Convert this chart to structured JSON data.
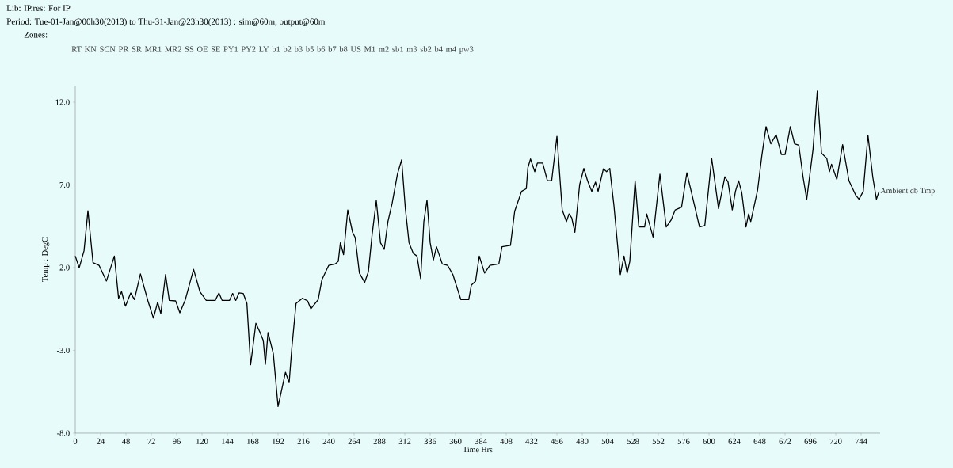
{
  "chart_data": {
    "type": "line",
    "title": "Lib: IP.res: For IP",
    "subtitle": "Period: Tue-01-Jan@00h30(2013) to Thu-31-Jan@23h30(2013) : sim@60m, output@60m",
    "xlabel": "Time Hrs",
    "ylabel": "Temp : DegC",
    "annotations": [
      "Zones:",
      "RT",
      "KN",
      "SCN",
      "PR",
      "SR",
      "MR1",
      "MR2",
      "SS",
      "OE",
      "SE",
      "PY1",
      "PY2",
      "LY",
      "b1",
      "b2",
      "b3",
      "b5",
      "b6",
      "b7",
      "b8",
      "US",
      "M1",
      "m2",
      "sb1",
      "m3",
      "sb2",
      "b4",
      "m4",
      "pw3"
    ],
    "xlim": [
      0,
      762
    ],
    "ylim": [
      -8,
      13
    ],
    "xticks": [
      0,
      24,
      48,
      72,
      96,
      120,
      144,
      168,
      192,
      216,
      240,
      264,
      288,
      312,
      336,
      360,
      384,
      408,
      432,
      456,
      480,
      504,
      528,
      552,
      576,
      600,
      624,
      648,
      672,
      696,
      720,
      744
    ],
    "yticks": [
      {
        "value": -8,
        "label": "-8.0"
      },
      {
        "value": -3,
        "label": "-3.0"
      },
      {
        "value": 2,
        "label": "2.0"
      },
      {
        "value": 7,
        "label": "7.0"
      },
      {
        "value": 12,
        "label": "12.0"
      }
    ],
    "grid": false,
    "legend": false,
    "series": [
      {
        "name": "Ambient db Tmp",
        "color": "#000000",
        "x": [
          0,
          3.75,
          8.3,
          12,
          16.8,
          22.5,
          29.5,
          37,
          41,
          43.8,
          47.5,
          52.5,
          56,
          61.7,
          68.8,
          74,
          78,
          81,
          85.5,
          89,
          95,
          99,
          104,
          112,
          118,
          124,
          132.5,
          136,
          139,
          146,
          149,
          152,
          155,
          159,
          162.5,
          166,
          168,
          171,
          175,
          178,
          180,
          182.5,
          187.5,
          192,
          199,
          202.5,
          205,
          209,
          215,
          220,
          223,
          230,
          233.5,
          240,
          246,
          249,
          251,
          254,
          258,
          262.5,
          265,
          269,
          274,
          277.5,
          281,
          285,
          289,
          292.5,
          296,
          300,
          305,
          309,
          312.5,
          316,
          320,
          323.5,
          327,
          330,
          333,
          336,
          339,
          342,
          347.5,
          352.5,
          357.5,
          365,
          372.5,
          375,
          379,
          382.5,
          387.5,
          392.5,
          401,
          404,
          412,
          416,
          422.5,
          427,
          428.5,
          431,
          435,
          437.5,
          442.5,
          447,
          451,
          456,
          461,
          465,
          467.5,
          470,
          473,
          477.5,
          481.5,
          485,
          489,
          492.5,
          495,
          500,
          503,
          506,
          510,
          516,
          519.5,
          522.5,
          525,
          530,
          533.5,
          539,
          541,
          547,
          553.5,
          559.5,
          564,
          568,
          574,
          579,
          584,
          591,
          596,
          602.5,
          609,
          615,
          618,
          622,
          625,
          628,
          631,
          635,
          637.5,
          639.5,
          646,
          650,
          654,
          658.5,
          663.5,
          668.5,
          672,
          677,
          681,
          685,
          689,
          692.5,
          698.5,
          702.5,
          706.5,
          711.5,
          714,
          716,
          721,
          726.5,
          732.5,
          739,
          742,
          746,
          750.5,
          755,
          758.5,
          761
        ],
        "values": [
          2.7,
          1.99,
          3.02,
          5.44,
          2.3,
          2.14,
          1.19,
          2.7,
          0.15,
          0.55,
          -0.33,
          0.47,
          0.07,
          1.62,
          -0.01,
          -1.05,
          -0.09,
          -0.78,
          1.58,
          0.02,
          -0.01,
          -0.73,
          0.02,
          1.9,
          0.55,
          0.02,
          0.02,
          0.47,
          0.02,
          0.02,
          0.44,
          0.02,
          0.47,
          0.44,
          -0.17,
          -3.87,
          -2.88,
          -1.36,
          -1.92,
          -2.4,
          -3.84,
          -1.92,
          -3.2,
          -6.39,
          -4.32,
          -4.95,
          -2.88,
          -0.17,
          0.15,
          -0.01,
          -0.49,
          0.07,
          1.27,
          2.14,
          2.22,
          2.38,
          3.5,
          2.78,
          5.49,
          4.14,
          3.82,
          1.67,
          1.11,
          1.75,
          3.98,
          6.05,
          3.5,
          3.1,
          4.78,
          5.89,
          7.65,
          8.52,
          5.57,
          3.5,
          2.86,
          2.7,
          1.34,
          4.78,
          6.08,
          3.5,
          2.46,
          3.26,
          2.22,
          2.14,
          1.58,
          0.07,
          0.07,
          0.95,
          1.19,
          2.7,
          1.67,
          2.14,
          2.22,
          3.26,
          3.34,
          5.41,
          6.61,
          6.77,
          8.04,
          8.57,
          7.8,
          8.32,
          8.32,
          7.25,
          7.25,
          9.94,
          5.49,
          4.78,
          5.25,
          5.01,
          4.14,
          7.01,
          8.0,
          7.25,
          6.61,
          7.17,
          6.61,
          7.97,
          7.8,
          8.0,
          5.73,
          1.58,
          2.7,
          1.67,
          2.38,
          7.25,
          4.46,
          4.46,
          5.25,
          3.85,
          7.65,
          4.46,
          4.86,
          5.49,
          5.65,
          7.73,
          6.37,
          4.46,
          4.54,
          8.6,
          5.57,
          7.49,
          7.17,
          5.49,
          6.61,
          7.25,
          6.53,
          4.46,
          5.25,
          4.78,
          6.69,
          8.76,
          10.52,
          9.48,
          10.04,
          8.84,
          8.84,
          10.52,
          9.48,
          9.4,
          7.49,
          6.13,
          9.16,
          12.67,
          8.92,
          8.6,
          7.8,
          8.25,
          7.33,
          9.43,
          7.25,
          6.37,
          6.13,
          6.61,
          10.0,
          7.49,
          6.13,
          6.61
        ]
      }
    ]
  }
}
